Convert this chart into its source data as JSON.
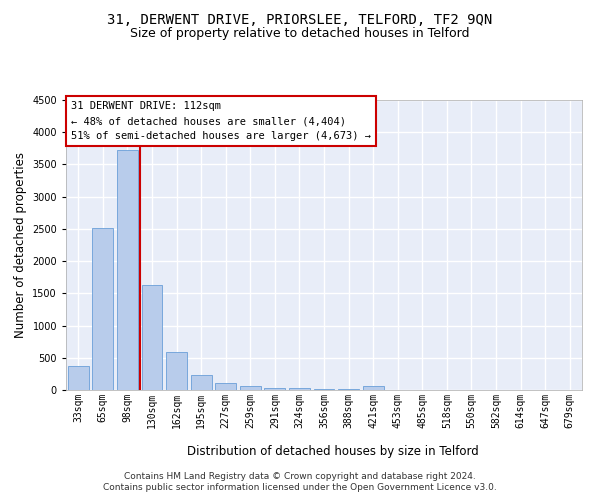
{
  "title": "31, DERWENT DRIVE, PRIORSLEE, TELFORD, TF2 9QN",
  "subtitle": "Size of property relative to detached houses in Telford",
  "xlabel": "Distribution of detached houses by size in Telford",
  "ylabel": "Number of detached properties",
  "categories": [
    "33sqm",
    "65sqm",
    "98sqm",
    "130sqm",
    "162sqm",
    "195sqm",
    "227sqm",
    "259sqm",
    "291sqm",
    "324sqm",
    "356sqm",
    "388sqm",
    "421sqm",
    "453sqm",
    "485sqm",
    "518sqm",
    "550sqm",
    "582sqm",
    "614sqm",
    "647sqm",
    "679sqm"
  ],
  "values": [
    375,
    2510,
    3730,
    1630,
    590,
    230,
    105,
    65,
    32,
    28,
    22,
    8,
    55,
    0,
    0,
    0,
    0,
    0,
    0,
    0,
    0
  ],
  "bar_color": "#b8cceb",
  "bar_edge_color": "#6a9fd8",
  "red_line_x": 2.5,
  "red_line_color": "#cc0000",
  "annotation_line1": "31 DERWENT DRIVE: 112sqm",
  "annotation_line2": "← 48% of detached houses are smaller (4,404)",
  "annotation_line3": "51% of semi-detached houses are larger (4,673) →",
  "ylim": [
    0,
    4500
  ],
  "yticks": [
    0,
    500,
    1000,
    1500,
    2000,
    2500,
    3000,
    3500,
    4000,
    4500
  ],
  "background_color": "#e8edf8",
  "grid_color": "#ffffff",
  "footer_line1": "Contains HM Land Registry data © Crown copyright and database right 2024.",
  "footer_line2": "Contains public sector information licensed under the Open Government Licence v3.0.",
  "title_fontsize": 10,
  "subtitle_fontsize": 9,
  "xlabel_fontsize": 8.5,
  "ylabel_fontsize": 8.5,
  "tick_fontsize": 7,
  "annotation_fontsize": 7.5,
  "footer_fontsize": 6.5
}
